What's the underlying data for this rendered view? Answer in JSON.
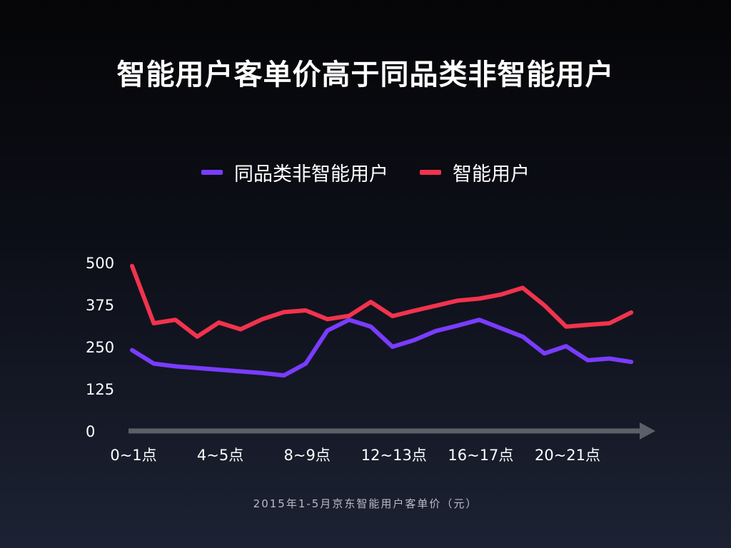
{
  "chart_data": {
    "type": "line",
    "title": "智能用户客单价高于同品类非智能用户",
    "footnote": "2015年1-5月京东智能用户客单价（元）",
    "xlabel": "",
    "ylabel": "",
    "ylim": [
      0,
      500
    ],
    "yticks": [
      "0",
      "125",
      "250",
      "375",
      "500"
    ],
    "xtick_labels": [
      {
        "index": 0,
        "label": "0~1点"
      },
      {
        "index": 4,
        "label": "4~5点"
      },
      {
        "index": 8,
        "label": "8~9点"
      },
      {
        "index": 12,
        "label": "12~13点"
      },
      {
        "index": 16,
        "label": "16~17点"
      },
      {
        "index": 20,
        "label": "20~21点"
      }
    ],
    "grid": false,
    "legend_position": "top-center",
    "series": [
      {
        "name": "同品类非智能用户",
        "color": "#7a3cff",
        "values": [
          240,
          200,
          192,
          187,
          182,
          177,
          172,
          165,
          200,
          298,
          330,
          310,
          250,
          270,
          297,
          313,
          330,
          305,
          280,
          230,
          252,
          210,
          215,
          205
        ]
      },
      {
        "name": "智能用户",
        "color": "#f2334d",
        "values": [
          490,
          320,
          330,
          280,
          322,
          302,
          332,
          353,
          358,
          332,
          342,
          383,
          341,
          357,
          372,
          387,
          393,
          405,
          425,
          373,
          310,
          315,
          320,
          352
        ]
      }
    ]
  }
}
